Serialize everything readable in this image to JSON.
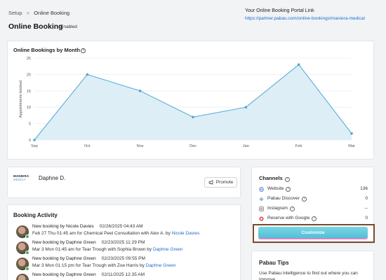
{
  "breadcrumb": {
    "root": "Setup",
    "separator": ">",
    "current": "Online Booking"
  },
  "page": {
    "title": "Online Booking",
    "status": "Enabled"
  },
  "portal": {
    "label": "Your Online Booking Portal Link",
    "url": "https://partner.pabau.com/online-bookings/maniera-medical"
  },
  "chart_data": {
    "type": "area",
    "title": "Online Bookings by Month",
    "ylabel": "Appointments booked",
    "xlabel": "",
    "categories": [
      "Sep",
      "Oct",
      "Nov",
      "Dec",
      "Jan",
      "Feb",
      "Mar"
    ],
    "values": [
      0,
      20,
      15,
      7,
      10,
      23,
      2
    ],
    "ylim": [
      0,
      25
    ],
    "yticks": [
      0,
      5,
      10,
      15,
      20,
      25
    ],
    "grid": true,
    "line_color": "#4ba9d4",
    "fill_color": "#deeef7"
  },
  "profile": {
    "logo_top": "MANIERA",
    "logo_bottom": "MEDICA",
    "name": "Daphne D.",
    "promote_label": "Promote"
  },
  "activity": {
    "title": "Booking Activity",
    "items": [
      {
        "headline": "New booking by Nicole Davies",
        "time": "02/26/2025 04:43 AM",
        "detail": "Feb 27 Thu 01:45 am for Chemical Peel Consultation with Alex A. by ",
        "who": "Nicole Davies"
      },
      {
        "headline": "New booking by Daphne Green",
        "time": "02/23/2025 11:29 PM",
        "detail": "Mar 3 Mon 01:45 am for Tear Trough with Sophia Brown by ",
        "who": "Daphne Green"
      },
      {
        "headline": "New booking by Daphne Green",
        "time": "02/23/2025 09:55 PM",
        "detail": "Mar 3 Mon 01:15 pm for Tear Trough with Zoe Harris by ",
        "who": "Daphne Green"
      },
      {
        "headline": "New booking by Daphne Green",
        "time": "02/11/2025 12:35 AM",
        "detail": "",
        "who": ""
      }
    ]
  },
  "channels": {
    "title": "Channels",
    "items": [
      {
        "label": "Website",
        "value": "136",
        "icon": "globe-icon"
      },
      {
        "label": "Pabau Discover",
        "value": "0",
        "icon": "diamond-icon"
      },
      {
        "label": "Instagram",
        "value": "--",
        "icon": "instagram-icon"
      },
      {
        "label": "Reserve with Google",
        "value": "0",
        "icon": "google-icon"
      }
    ],
    "customize_label": "Customize"
  },
  "tips": {
    "title": "Pabau Tips",
    "text": "Use Pabau intelligence to find out where you can improve"
  }
}
